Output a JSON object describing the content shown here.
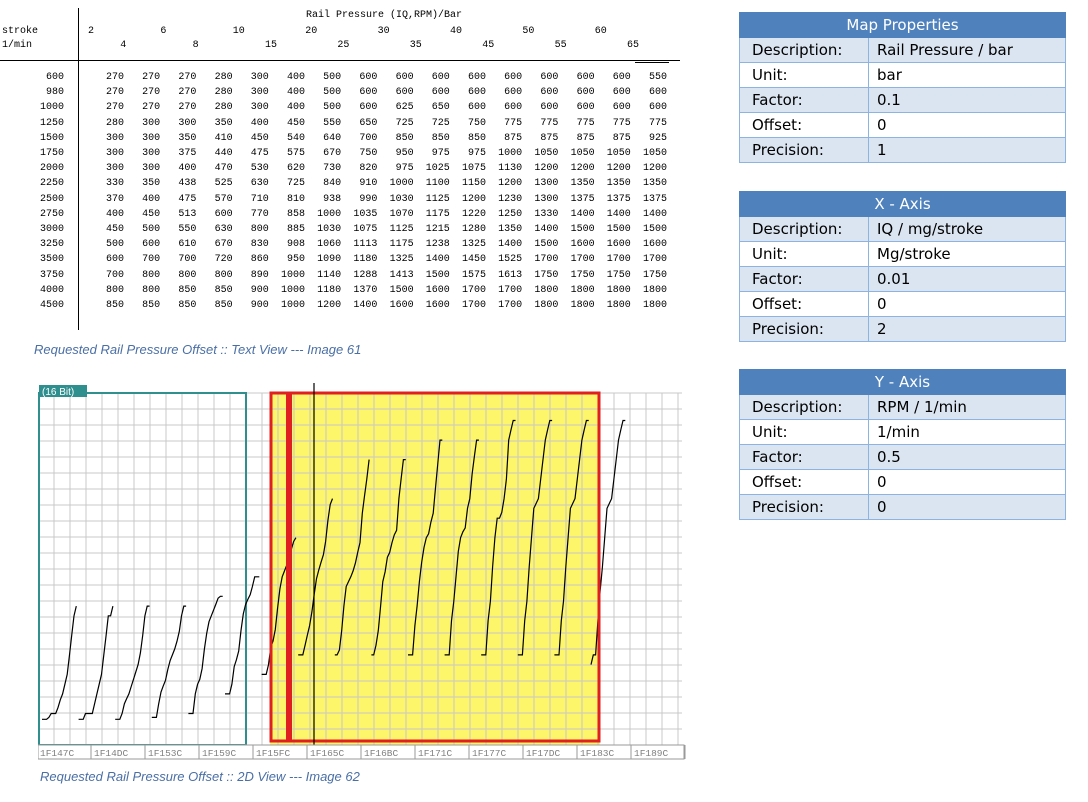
{
  "text_view": {
    "header_title": "Rail Pressure (IQ,RPM)/Bar",
    "y_label_1": "stroke",
    "y_label_2": "1/min",
    "x_top": [
      "2",
      "6",
      "10",
      "20",
      "30",
      "40",
      "50",
      "60"
    ],
    "x_bottom": [
      "4",
      "8",
      "15",
      "25",
      "35",
      "45",
      "55",
      "65"
    ],
    "rows": [
      {
        "rpm": "600",
        "v": [
          "270",
          "270",
          "270",
          "280",
          "300",
          "400",
          "500",
          "600",
          "600",
          "600",
          "600",
          "600",
          "600",
          "600",
          "600",
          "550"
        ]
      },
      {
        "rpm": "980",
        "v": [
          "270",
          "270",
          "270",
          "280",
          "300",
          "400",
          "500",
          "600",
          "600",
          "600",
          "600",
          "600",
          "600",
          "600",
          "600",
          "600"
        ]
      },
      {
        "rpm": "1000",
        "v": [
          "270",
          "270",
          "270",
          "280",
          "300",
          "400",
          "500",
          "600",
          "625",
          "650",
          "600",
          "600",
          "600",
          "600",
          "600",
          "600"
        ]
      },
      {
        "rpm": "1250",
        "v": [
          "280",
          "300",
          "300",
          "350",
          "400",
          "450",
          "550",
          "650",
          "725",
          "725",
          "750",
          "775",
          "775",
          "775",
          "775",
          "775"
        ]
      },
      {
        "rpm": "1500",
        "v": [
          "300",
          "300",
          "350",
          "410",
          "450",
          "540",
          "640",
          "700",
          "850",
          "850",
          "850",
          "875",
          "875",
          "875",
          "875",
          "925"
        ]
      },
      {
        "rpm": "1750",
        "v": [
          "300",
          "300",
          "375",
          "440",
          "475",
          "575",
          "670",
          "750",
          "950",
          "975",
          "975",
          "1000",
          "1050",
          "1050",
          "1050",
          "1050"
        ]
      },
      {
        "rpm": "2000",
        "v": [
          "300",
          "300",
          "400",
          "470",
          "530",
          "620",
          "730",
          "820",
          "975",
          "1025",
          "1075",
          "1130",
          "1200",
          "1200",
          "1200",
          "1200"
        ]
      },
      {
        "rpm": "2250",
        "v": [
          "330",
          "350",
          "438",
          "525",
          "630",
          "725",
          "840",
          "910",
          "1000",
          "1100",
          "1150",
          "1200",
          "1300",
          "1350",
          "1350",
          "1350"
        ]
      },
      {
        "rpm": "2500",
        "v": [
          "370",
          "400",
          "475",
          "570",
          "710",
          "810",
          "938",
          "990",
          "1030",
          "1125",
          "1200",
          "1230",
          "1300",
          "1375",
          "1375",
          "1375"
        ]
      },
      {
        "rpm": "2750",
        "v": [
          "400",
          "450",
          "513",
          "600",
          "770",
          "858",
          "1000",
          "1035",
          "1070",
          "1175",
          "1220",
          "1250",
          "1330",
          "1400",
          "1400",
          "1400"
        ]
      },
      {
        "rpm": "3000",
        "v": [
          "450",
          "500",
          "550",
          "630",
          "800",
          "885",
          "1030",
          "1075",
          "1125",
          "1215",
          "1280",
          "1350",
          "1400",
          "1500",
          "1500",
          "1500"
        ]
      },
      {
        "rpm": "3250",
        "v": [
          "500",
          "600",
          "610",
          "670",
          "830",
          "908",
          "1060",
          "1113",
          "1175",
          "1238",
          "1325",
          "1400",
          "1500",
          "1600",
          "1600",
          "1600"
        ]
      },
      {
        "rpm": "3500",
        "v": [
          "600",
          "700",
          "700",
          "720",
          "860",
          "950",
          "1090",
          "1180",
          "1325",
          "1400",
          "1450",
          "1525",
          "1700",
          "1700",
          "1700",
          "1700"
        ]
      },
      {
        "rpm": "3750",
        "v": [
          "700",
          "800",
          "800",
          "800",
          "890",
          "1000",
          "1140",
          "1288",
          "1413",
          "1500",
          "1575",
          "1613",
          "1750",
          "1750",
          "1750",
          "1750"
        ]
      },
      {
        "rpm": "4000",
        "v": [
          "800",
          "800",
          "850",
          "850",
          "900",
          "1000",
          "1180",
          "1370",
          "1500",
          "1600",
          "1700",
          "1700",
          "1800",
          "1800",
          "1800",
          "1800"
        ]
      },
      {
        "rpm": "4500",
        "v": [
          "850",
          "850",
          "850",
          "850",
          "900",
          "1000",
          "1200",
          "1400",
          "1600",
          "1600",
          "1700",
          "1700",
          "1800",
          "1800",
          "1800",
          "1800"
        ]
      }
    ]
  },
  "caption_text": "Requested Rail Pressure Offset :: Text View --- Image 61",
  "caption_2d": "Requested Rail Pressure Offset :: 2D View --- Image 62",
  "view_2d": {
    "badge": "(16 Bit)",
    "addresses": [
      "1F147C",
      "1F14DC",
      "1F153C",
      "1F159C",
      "1F15FC",
      "1F165C",
      "1F16BC",
      "1F171C",
      "1F177C",
      "1F17DC",
      "1F183C",
      "1F189C"
    ],
    "colors": {
      "highlight": "#fdf56a",
      "selection": "#e02020",
      "teal": "#2f8f8f",
      "grid": "#c8c8c8"
    }
  },
  "map_properties": {
    "title": "Map Properties",
    "rows": [
      {
        "k": "Description:",
        "v": "Rail Pressure / bar"
      },
      {
        "k": "Unit:",
        "v": "bar"
      },
      {
        "k": "Factor:",
        "v": "0.1"
      },
      {
        "k": "Offset:",
        "v": "0"
      },
      {
        "k": "Precision:",
        "v": "1"
      }
    ]
  },
  "x_axis": {
    "title": "X - Axis",
    "rows": [
      {
        "k": "Description:",
        "v": "IQ / mg/stroke"
      },
      {
        "k": "Unit:",
        "v": "Mg/stroke"
      },
      {
        "k": "Factor:",
        "v": "0.01"
      },
      {
        "k": "Offset:",
        "v": "0"
      },
      {
        "k": "Precision:",
        "v": "2"
      }
    ]
  },
  "y_axis": {
    "title": "Y - Axis",
    "rows": [
      {
        "k": "Description:",
        "v": "RPM / 1/min"
      },
      {
        "k": "Unit:",
        "v": "1/min"
      },
      {
        "k": "Factor:",
        "v": "0.5"
      },
      {
        "k": "Offset:",
        "v": "0"
      },
      {
        "k": "Precision:",
        "v": "0"
      }
    ]
  }
}
